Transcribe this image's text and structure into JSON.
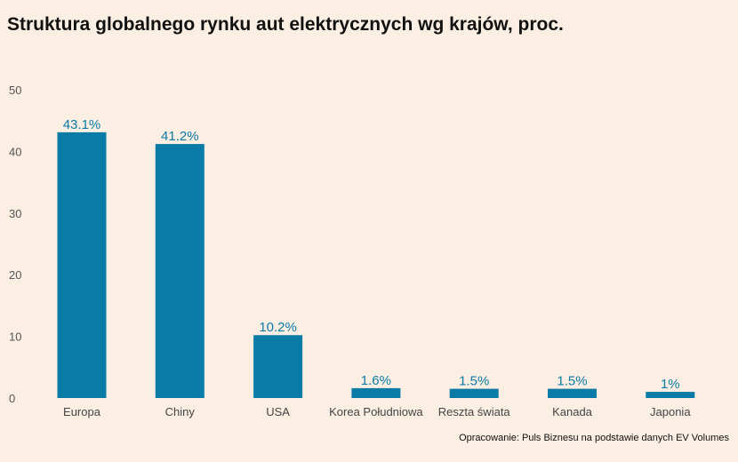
{
  "title": "Struktura globalnego rynku aut elektrycznych wg krajów, proc.",
  "source": "Opracowanie: Puls Biznesu na podstawie danych EV Volumes",
  "chart_data": {
    "type": "bar",
    "title": "Struktura globalnego rynku aut elektrycznych wg krajów, proc.",
    "categories": [
      "Europa",
      "Chiny",
      "USA",
      "Korea Południowa",
      "Reszta świata",
      "Kanada",
      "Japonia"
    ],
    "values": [
      43.1,
      41.2,
      10.2,
      1.6,
      1.5,
      1.5,
      1
    ],
    "data_labels": [
      "43.1%",
      "41.2%",
      "10.2%",
      "1.6%",
      "1.5%",
      "1.5%",
      "1%"
    ],
    "xlabel": "",
    "ylabel": "",
    "ylim": [
      0,
      50
    ],
    "yticks": [
      0,
      10,
      20,
      30,
      40,
      50
    ],
    "grid": false,
    "legend": "none",
    "bar_color": "#0a7ba6",
    "label_color": "#0a7ba6"
  }
}
